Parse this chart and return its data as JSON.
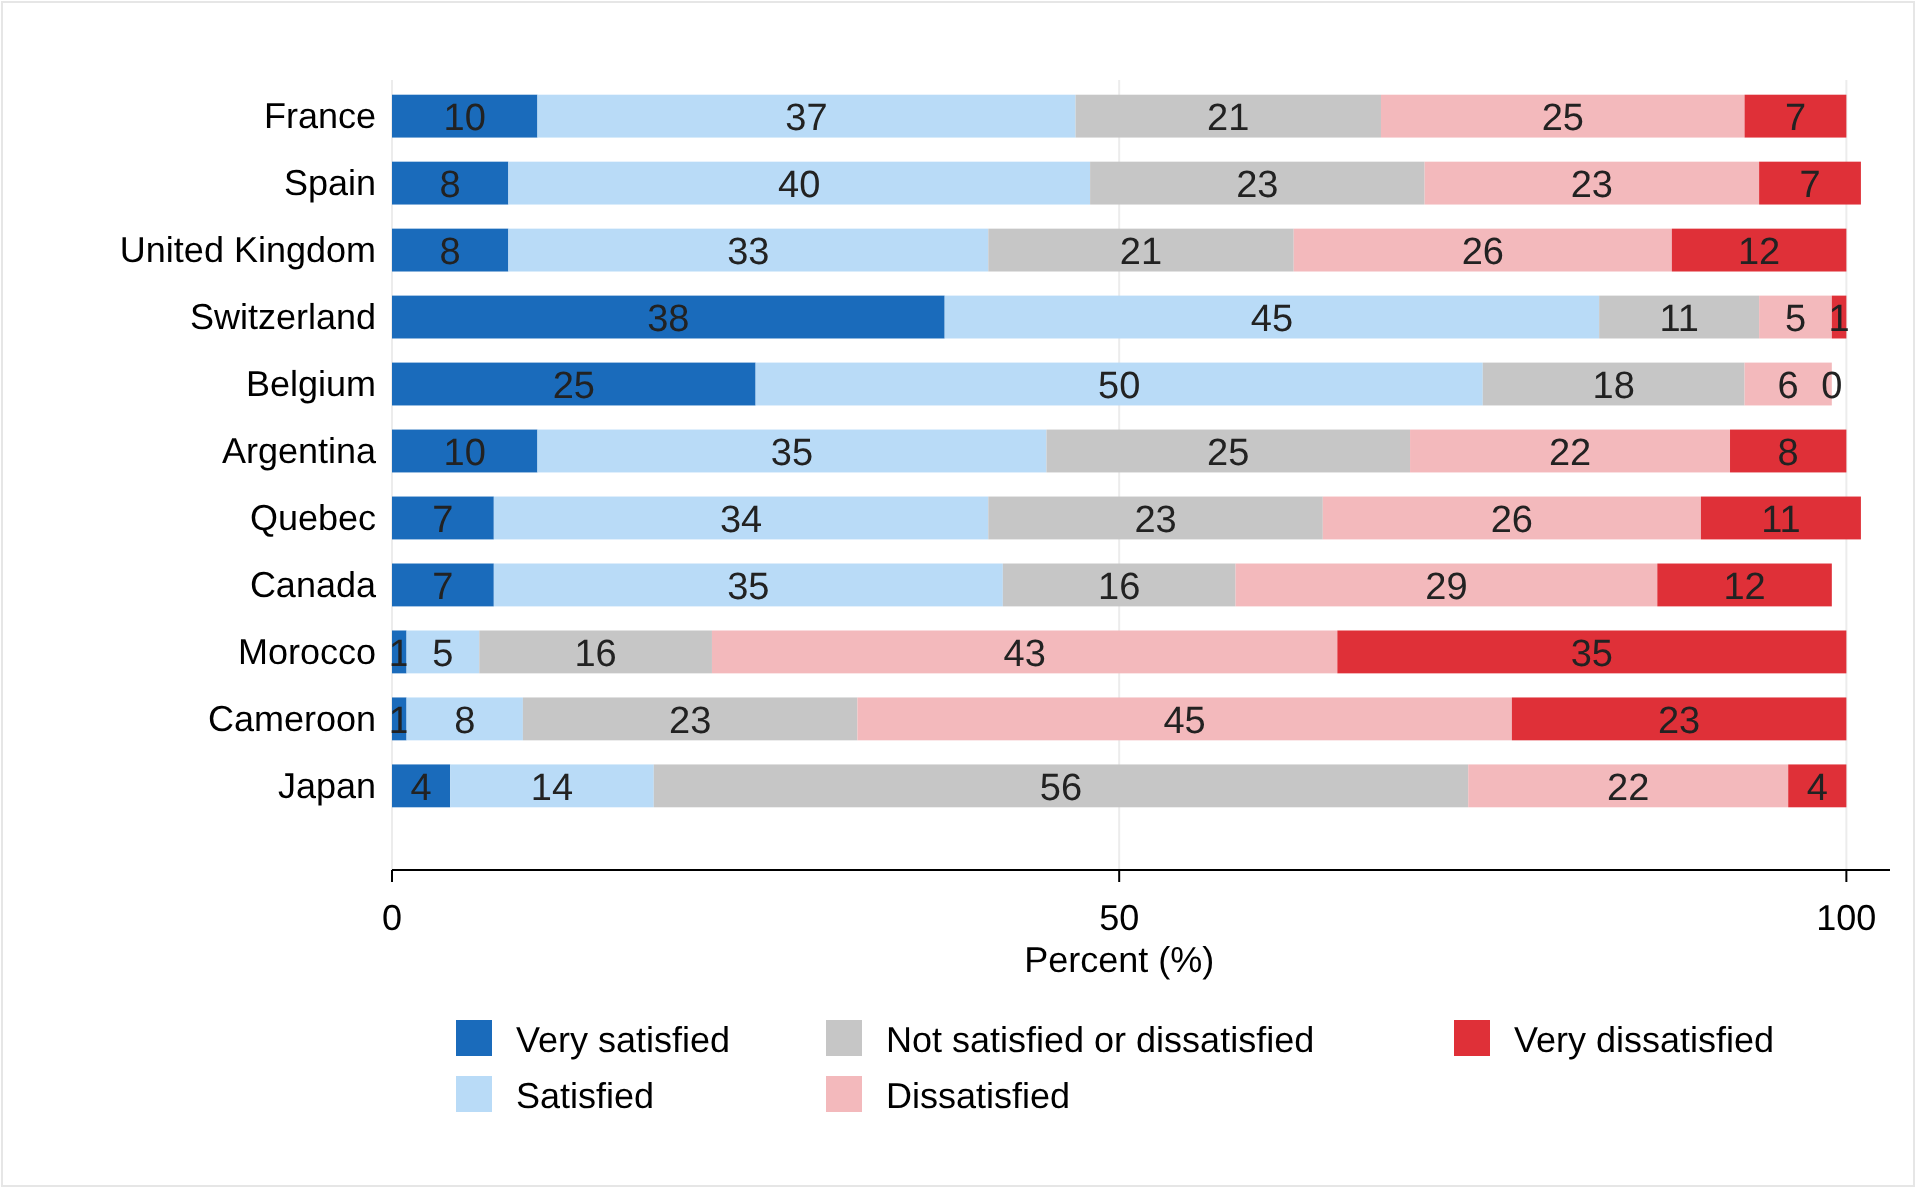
{
  "chart_data": {
    "type": "bar",
    "orientation": "horizontal",
    "stacked": true,
    "xlabel": "Percent (%)",
    "categories": [
      "France",
      "Spain",
      "United Kingdom",
      "Switzerland",
      "Belgium",
      "Argentina",
      "Quebec",
      "Canada",
      "Morocco",
      "Cameroon",
      "Japan"
    ],
    "series": [
      {
        "name": "Very satisfied",
        "color": "#1a6bbb",
        "values": [
          10,
          8,
          8,
          38,
          25,
          10,
          7,
          7,
          1,
          1,
          4
        ]
      },
      {
        "name": "Satisfied",
        "color": "#b9dbf7",
        "values": [
          37,
          40,
          33,
          45,
          50,
          35,
          34,
          35,
          5,
          8,
          14
        ]
      },
      {
        "name": "Not satisfied or dissatisfied",
        "color": "#c6c6c6",
        "values": [
          21,
          23,
          21,
          11,
          18,
          25,
          23,
          16,
          16,
          23,
          56
        ]
      },
      {
        "name": "Dissatisfied",
        "color": "#f3b9bc",
        "values": [
          25,
          23,
          26,
          5,
          6,
          22,
          26,
          29,
          43,
          45,
          22
        ]
      },
      {
        "name": "Very dissatisfied",
        "color": "#df3038",
        "values": [
          7,
          7,
          12,
          1,
          0,
          8,
          11,
          12,
          35,
          23,
          4
        ]
      }
    ],
    "xlim": [
      0,
      103
    ],
    "xticks": [
      0,
      50,
      100
    ],
    "grid": "x",
    "data_labels": true,
    "legend": "bottom"
  }
}
